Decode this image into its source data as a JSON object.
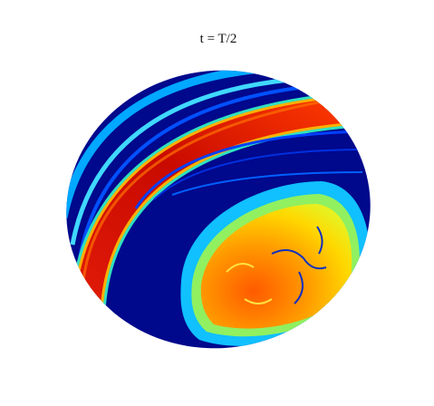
{
  "figure": {
    "title": "t = T/2"
  }
}
